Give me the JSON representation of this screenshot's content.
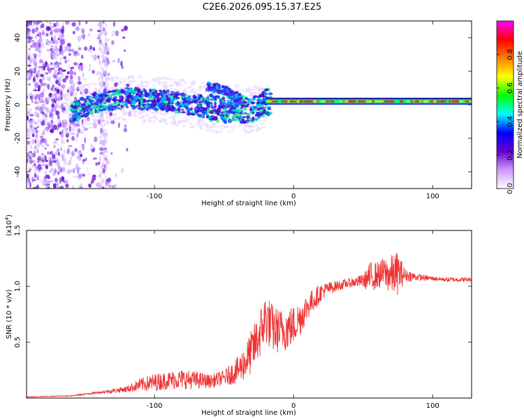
{
  "title": "C2E6.2026.095.15.37.E25",
  "chart_data": [
    {
      "type": "heatmap",
      "name": "spectrogram",
      "xlabel": "Height of straight line (km)",
      "ylabel": "Frequency (Hz)",
      "xlim": [
        -192,
        128
      ],
      "ylim": [
        -50,
        50
      ],
      "xticks": [
        -100,
        0,
        100
      ],
      "yticks": [
        -40,
        -20,
        0,
        20,
        40
      ],
      "ridge": [
        {
          "x": -155,
          "y": -4
        },
        {
          "x": -150,
          "y": -1
        },
        {
          "x": -140,
          "y": 2
        },
        {
          "x": -120,
          "y": 4
        },
        {
          "x": -100,
          "y": 3
        },
        {
          "x": -80,
          "y": 1
        },
        {
          "x": -65,
          "y": -1
        },
        {
          "x": -55,
          "y": -3
        },
        {
          "x": -45,
          "y": -2
        },
        {
          "x": -35,
          "y": -3
        },
        {
          "x": -25,
          "y": -2
        },
        {
          "x": -20,
          "y": 1
        },
        {
          "x": -10,
          "y": 2
        },
        {
          "x": 0,
          "y": 2
        },
        {
          "x": 50,
          "y": 2
        },
        {
          "x": 100,
          "y": 2
        },
        {
          "x": 128,
          "y": 2
        }
      ],
      "branch": [
        {
          "x": -62,
          "y": 11
        },
        {
          "x": -55,
          "y": 10
        },
        {
          "x": -48,
          "y": 8
        },
        {
          "x": -42,
          "y": 6
        },
        {
          "x": -36,
          "y": 2
        }
      ],
      "colorbar": {
        "label": "Normalized spectral amplitude",
        "range": [
          0,
          1
        ],
        "ticks": [
          "0.0",
          "0.2",
          "0.4",
          "0.6",
          "0.8"
        ],
        "colors": [
          "#ffffff",
          "#cc99ff",
          "#6600cc",
          "#0000ff",
          "#00ffff",
          "#00ff00",
          "#ffff00",
          "#ff8000",
          "#ff0000",
          "#ff00ff"
        ]
      }
    },
    {
      "type": "line",
      "name": "snr",
      "xlabel": "Height of straight line (km)",
      "ylabel": "SNR (10 * v/v)",
      "scale_label_base": "(x10",
      "scale_label_exp": "4",
      "scale_label_end": ")",
      "xlim": [
        -192,
        128
      ],
      "ylim": [
        0,
        1.5
      ],
      "xticks": [
        -100,
        0,
        100
      ],
      "yticks": [
        "0.5",
        "1.0",
        "1.5"
      ],
      "color": "#ee3333",
      "x": [
        -192,
        -160,
        -140,
        -120,
        -110,
        -100,
        -90,
        -80,
        -70,
        -60,
        -50,
        -40,
        -35,
        -30,
        -25,
        -20,
        -15,
        -10,
        -5,
        0,
        5,
        10,
        20,
        25,
        30,
        40,
        50,
        55,
        60,
        65,
        70,
        75,
        80,
        90,
        100,
        110,
        120,
        128
      ],
      "y": [
        0.01,
        0.02,
        0.05,
        0.08,
        0.12,
        0.14,
        0.16,
        0.17,
        0.16,
        0.15,
        0.18,
        0.25,
        0.32,
        0.42,
        0.55,
        0.72,
        0.62,
        0.6,
        0.62,
        0.65,
        0.72,
        0.82,
        0.95,
        0.98,
        1.0,
        1.03,
        1.05,
        1.08,
        1.1,
        1.12,
        1.1,
        1.12,
        1.1,
        1.08,
        1.07,
        1.06,
        1.06,
        1.06
      ],
      "noise": [
        0.003,
        0.004,
        0.01,
        0.03,
        0.06,
        0.08,
        0.08,
        0.09,
        0.08,
        0.06,
        0.07,
        0.12,
        0.16,
        0.2,
        0.22,
        0.24,
        0.22,
        0.2,
        0.2,
        0.18,
        0.16,
        0.12,
        0.08,
        0.06,
        0.05,
        0.04,
        0.06,
        0.14,
        0.12,
        0.14,
        0.18,
        0.2,
        0.06,
        0.03,
        0.02,
        0.02,
        0.02,
        0.02
      ]
    }
  ]
}
